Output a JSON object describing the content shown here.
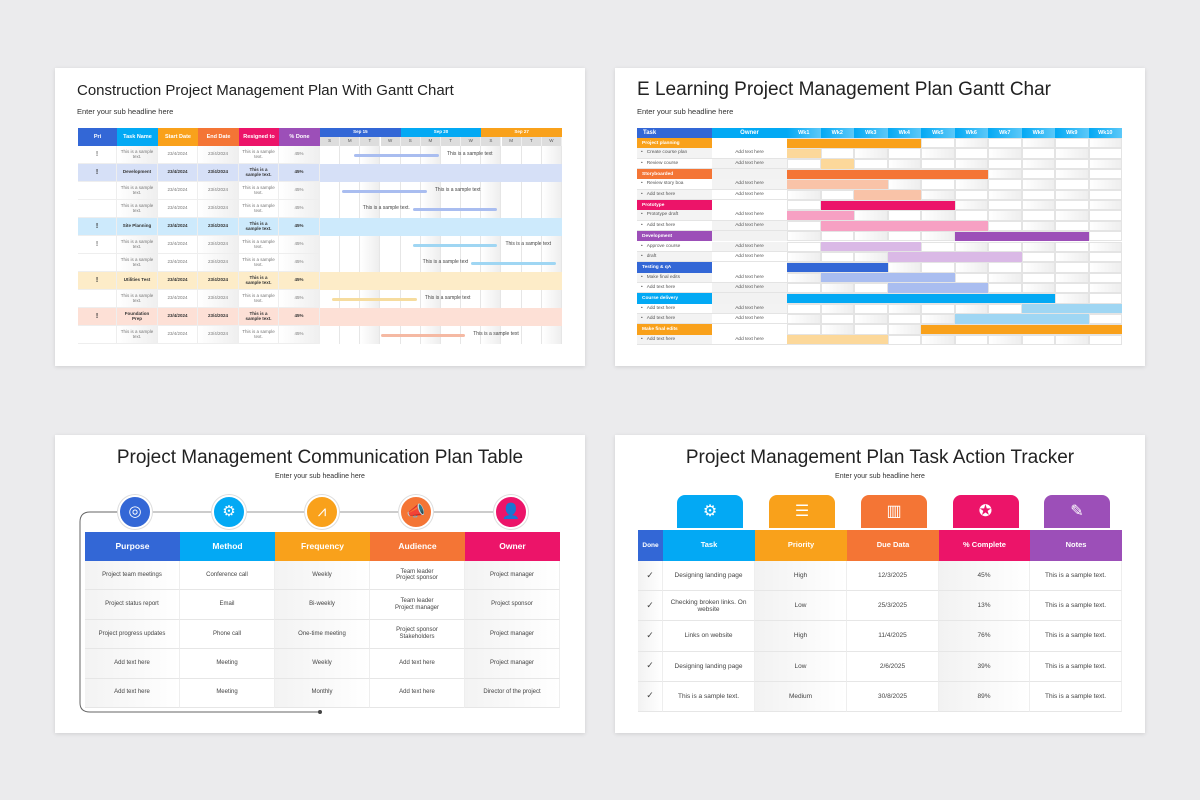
{
  "background_color": "#ebebed",
  "slide1": {
    "title": "Construction Project Management Plan With Gantt Chart",
    "subtitle": "Enter your sub headline here",
    "columns": [
      {
        "label": "Pri",
        "color": "#3367d6"
      },
      {
        "label": "Task Name",
        "color": "#03a9f4"
      },
      {
        "label": "Start Date",
        "color": "#f9a11b"
      },
      {
        "label": "End Date",
        "color": "#f47535"
      },
      {
        "label": "Resigned to",
        "color": "#ec1469"
      },
      {
        "label": "% Done",
        "color": "#9c4fb8"
      }
    ],
    "weeks": [
      {
        "label": "Sep 15",
        "color": "#3367d6"
      },
      {
        "label": "Sep 20",
        "color": "#03a9f4"
      },
      {
        "label": "Sep 27",
        "color": "#f9a11b"
      }
    ],
    "days": [
      "S",
      "M",
      "T",
      "W",
      "S",
      "M",
      "T",
      "W",
      "S",
      "M",
      "T",
      "W"
    ],
    "rows": [
      {
        "pri": "!",
        "task": "This is a sample text.",
        "start": "23/4/2024",
        "end": "23/4/2024",
        "resigned": "This is a sample text.",
        "done": "45%",
        "bar": {
          "from": 1.7,
          "to": 5.9,
          "color": "#a9bdf0"
        },
        "note": "This is a sample text",
        "note_side": "right"
      },
      {
        "group": true,
        "bg": "#d6e0f7",
        "pri": "!",
        "task": "Development",
        "start": "23/4/2024",
        "end": "23/4/2024",
        "resigned": "This is a sample text.",
        "done": "45%"
      },
      {
        "pri": "",
        "task": "This is a sample text.",
        "start": "23/4/2024",
        "end": "23/4/2024",
        "resigned": "This is a sample text.",
        "done": "45%",
        "bar": {
          "from": 1.1,
          "to": 5.3,
          "color": "#a9bdf0"
        },
        "note": "This is a sample text",
        "note_side": "right"
      },
      {
        "pri": "",
        "task": "This is a sample text.",
        "start": "23/4/2024",
        "end": "23/4/2024",
        "resigned": "This is a sample text.",
        "done": "45%",
        "bar": {
          "from": 4.6,
          "to": 8.8,
          "color": "#a9bdf0"
        },
        "note": "This is a sample text.",
        "note_side": "left"
      },
      {
        "group": true,
        "bg": "#cdeafc",
        "pri": "!",
        "task": "Site Planning",
        "start": "23/4/2024",
        "end": "23/4/2024",
        "resigned": "This is a sample text.",
        "done": "45%"
      },
      {
        "pri": "!",
        "task": "This is a sample text.",
        "start": "23/4/2024",
        "end": "23/4/2024",
        "resigned": "This is a sample text.",
        "done": "45%",
        "bar": {
          "from": 4.6,
          "to": 8.8,
          "color": "#9fd6f3"
        },
        "note": "This is a sample text",
        "note_side": "right"
      },
      {
        "pri": "",
        "task": "This is a sample text.",
        "start": "23/4/2024",
        "end": "23/4/2024",
        "resigned": "This is a sample text.",
        "done": "45%",
        "bar": {
          "from": 7.5,
          "to": 11.7,
          "color": "#9fd6f3"
        },
        "note": "This is a sample text",
        "note_side": "left"
      },
      {
        "group": true,
        "bg": "#fdecc8",
        "pri": "!",
        "task": "Utilities Test",
        "start": "23/4/2024",
        "end": "23/4/2024",
        "resigned": "This is a sample text.",
        "done": "45%"
      },
      {
        "pri": "",
        "task": "This is a sample text.",
        "start": "23/4/2024",
        "end": "23/4/2024",
        "resigned": "This is a sample text.",
        "done": "45%",
        "bar": {
          "from": 0.6,
          "to": 4.8,
          "color": "#f6dc9e"
        },
        "note": "This is a sample text",
        "note_side": "right"
      },
      {
        "group": true,
        "bg": "#fde0d6",
        "pri": "!",
        "task": "Foundation Prep",
        "start": "23/4/2024",
        "end": "23/4/2024",
        "resigned": "This is a sample text.",
        "done": "45%"
      },
      {
        "pri": "",
        "task": "This is a sample text.",
        "start": "23/4/2024",
        "end": "23/4/2024",
        "resigned": "This is a sample text.",
        "done": "45%",
        "bar": {
          "from": 3.0,
          "to": 7.2,
          "color": "#f5b9a3"
        },
        "note": "This is a sample text",
        "note_side": "right"
      }
    ]
  },
  "slide2": {
    "title": "E Learning Project Management Plan Gantt Char",
    "subtitle": "Enter your sub headline here",
    "header": {
      "task": "Task",
      "owner": "Owner",
      "task_color": "#3367d6",
      "color": "#03a9f4"
    },
    "weeks": [
      "Wk1",
      "Wk2",
      "Wk3",
      "Wk4",
      "Wk5",
      "Wk6",
      "Wk7",
      "Wk8",
      "Wk9",
      "Wk10"
    ],
    "rows": [
      {
        "group": true,
        "label": "Project planning",
        "color": "#f9a11b",
        "from": 1,
        "to": 4
      },
      {
        "label": "Create course plan",
        "owner": "Add text here",
        "color": "#fcd89a",
        "from": 1,
        "to": 1
      },
      {
        "label": "Review course",
        "owner": "Add text here",
        "color": "#fcd89a",
        "from": 2,
        "to": 2
      },
      {
        "group": true,
        "label": "Storyboarded",
        "color": "#f47535",
        "from": 1,
        "to": 6
      },
      {
        "label": "Review story boa",
        "owner": "Add text here",
        "color": "#f9c3a8",
        "from": 1,
        "to": 3
      },
      {
        "label": "Add text here",
        "owner": "Add text here",
        "color": "#f9c3a8",
        "from": 3,
        "to": 4
      },
      {
        "group": true,
        "label": "Prototype",
        "color": "#ec1469",
        "from": 2,
        "to": 5
      },
      {
        "label": "Prototype draft",
        "owner": "Add text here",
        "color": "#f7a0c3",
        "from": 1,
        "to": 2
      },
      {
        "label": "Add text here",
        "owner": "Add text here",
        "color": "#f7a0c3",
        "from": 2,
        "to": 6
      },
      {
        "group": true,
        "label": "Development",
        "color": "#9c4fb8",
        "from": 6,
        "to": 9
      },
      {
        "label": "Approve course",
        "owner": "Add text here",
        "color": "#dab9e6",
        "from": 2,
        "to": 4
      },
      {
        "label": "draft",
        "owner": "Add text here",
        "color": "#dab9e6",
        "from": 4,
        "to": 7
      },
      {
        "group": true,
        "label": "Testing & qA",
        "color": "#3367d6",
        "from": 1,
        "to": 3
      },
      {
        "label": "Make final edits",
        "owner": "Add text here",
        "color": "#a9bdf0",
        "from": 2,
        "to": 5
      },
      {
        "label": "Add text here",
        "owner": "Add text here",
        "color": "#a9bdf0",
        "from": 4,
        "to": 6
      },
      {
        "group": true,
        "label": "Course delivery",
        "color": "#03a9f4",
        "from": 1,
        "to": 8
      },
      {
        "label": "Add text here",
        "owner": "Add text here",
        "color": "#9fd6f3",
        "from": 8,
        "to": 10
      },
      {
        "label": "Add text here",
        "owner": "Add text here",
        "color": "#9fd6f3",
        "from": 6,
        "to": 9
      },
      {
        "group": true,
        "label": "Make final edits",
        "color": "#f9a11b",
        "from": 5,
        "to": 10
      },
      {
        "label": "Add text here",
        "owner": "Add text here",
        "color": "#fcd89a",
        "from": 1,
        "to": 3
      }
    ]
  },
  "slide3": {
    "title": "Project Management Communication Plan Table",
    "subtitle": "Enter your sub headline here",
    "columns": [
      {
        "label": "Purpose",
        "color": "#3367d6",
        "icon": "target-icon"
      },
      {
        "label": "Method",
        "color": "#03a9f4",
        "icon": "workflow-icon"
      },
      {
        "label": "Frequency",
        "color": "#f9a11b",
        "icon": "frequency-chart-icon"
      },
      {
        "label": "Audience",
        "color": "#f47535",
        "icon": "megaphone-icon"
      },
      {
        "label": "Owner",
        "color": "#ec1469",
        "icon": "manager-icon"
      }
    ],
    "rows": [
      [
        "Project team meetings",
        "Conference call",
        "Weekly",
        "Team leader\nProject sponsor",
        "Project manager"
      ],
      [
        "Project status report",
        "Email",
        "Bi-weekly",
        "Team leader\nProject manager",
        "Project sponsor"
      ],
      [
        "Project progress updates",
        "Phone call",
        "One-time meeting",
        "Project sponsor\nStakeholders",
        "Project manager"
      ],
      [
        "Add text here",
        "Meeting",
        "Weekly",
        "Add text here",
        "Project manager"
      ],
      [
        "Add text here",
        "Meeting",
        "Monthly",
        "Add text here",
        "Director of the project"
      ]
    ]
  },
  "slide4": {
    "title": "Project Management Plan Task Action Tracker",
    "subtitle": "Enter your sub headline here",
    "columns": [
      {
        "label": "Done",
        "color": "#3367d6"
      },
      {
        "label": "Task",
        "color": "#03a9f4",
        "icon": "gear-idea-icon"
      },
      {
        "label": "Priority",
        "color": "#f9a11b",
        "icon": "priority-list-icon"
      },
      {
        "label": "Due Data",
        "color": "#f47535",
        "icon": "calendar-chart-icon"
      },
      {
        "label": "% Complete",
        "color": "#ec1469",
        "icon": "badge-check-icon"
      },
      {
        "label": "Notes",
        "color": "#9c4fb8",
        "icon": "notes-pen-icon"
      }
    ],
    "rows": [
      [
        "✓",
        "Designing landing page",
        "High",
        "12/3/2025",
        "45%",
        "This is a sample text."
      ],
      [
        "✓",
        "Checking broken links. On website",
        "Low",
        "25/3/2025",
        "13%",
        "This is a sample text."
      ],
      [
        "✓",
        "Links on website",
        "High",
        "11/4/2025",
        "76%",
        "This is a sample text."
      ],
      [
        "✓",
        "Designing landing page",
        "Low",
        "2/6/2025",
        "39%",
        "This is a sample text."
      ],
      [
        "✓",
        "This is a sample text.",
        "Medium",
        "30/8/2025",
        "89%",
        "This is a sample text."
      ]
    ]
  }
}
